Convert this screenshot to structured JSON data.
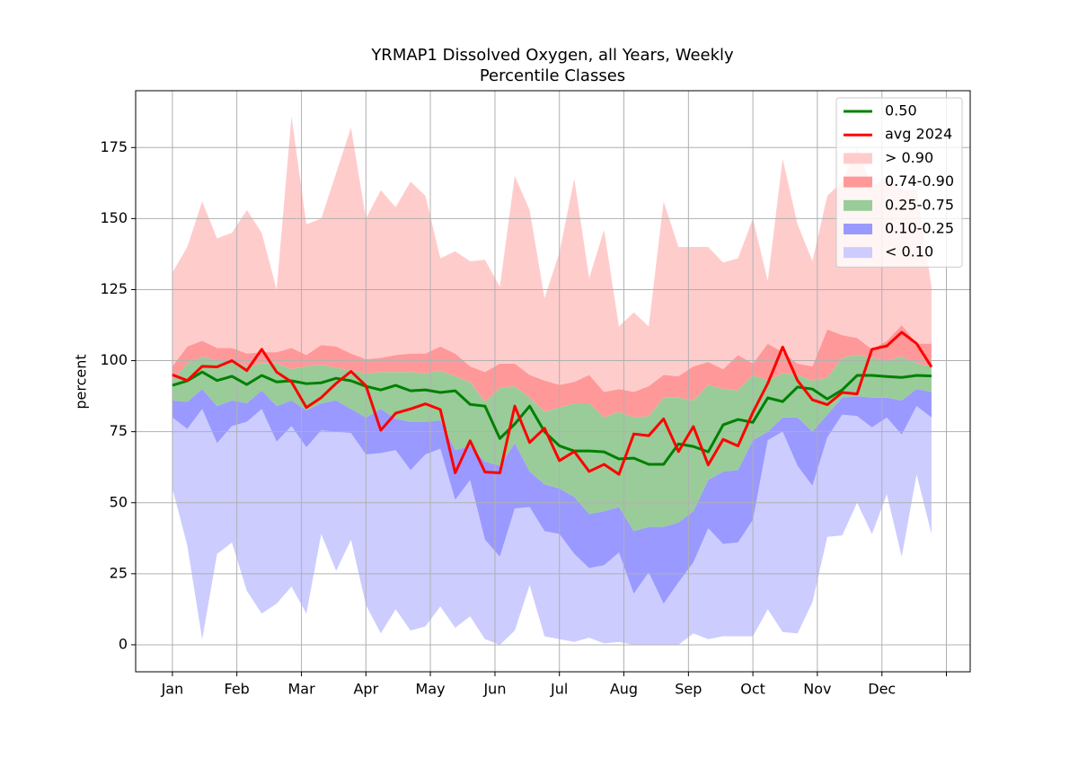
{
  "chart_data": {
    "type": "band",
    "title": "YRMAP1 Dissolved Oxygen, all Years, Weekly",
    "subtitle": "Percentile Classes",
    "y_label": "percent",
    "x": [
      0,
      1,
      2,
      3,
      4,
      5,
      6,
      7,
      8,
      9,
      10,
      11,
      12,
      13,
      14,
      15,
      16,
      17,
      18,
      19,
      20,
      21,
      22,
      23,
      24,
      25,
      26,
      27,
      28,
      29,
      30,
      31,
      32,
      33,
      34,
      35,
      36,
      37,
      38,
      39,
      40,
      41,
      42,
      43,
      44,
      45,
      46,
      47,
      48,
      49,
      50,
      51
    ],
    "xlim": [
      -2.47,
      53.6
    ],
    "xticks": [
      {
        "value": 0,
        "label": "Jan"
      },
      {
        "value": 4.33,
        "label": "Feb"
      },
      {
        "value": 8.67,
        "label": "Mar"
      },
      {
        "value": 13,
        "label": "Apr"
      },
      {
        "value": 17.33,
        "label": "May"
      },
      {
        "value": 21.67,
        "label": "Jun"
      },
      {
        "value": 26,
        "label": "Jul"
      },
      {
        "value": 30.33,
        "label": "Aug"
      },
      {
        "value": 34.67,
        "label": "Sep"
      },
      {
        "value": 39,
        "label": "Oct"
      },
      {
        "value": 43.33,
        "label": "Nov"
      },
      {
        "value": 47.67,
        "label": "Dec"
      },
      {
        "value": 52,
        "label": null
      }
    ],
    "ylim": [
      -9.5,
      195
    ],
    "yticks": [
      0,
      25,
      50,
      75,
      100,
      125,
      150,
      175
    ],
    "grid": true,
    "legend": "upper right",
    "series": [
      {
        "name": "0.50",
        "color": "#008000",
        "values": [
          91.3,
          92.9,
          96,
          93,
          94.5,
          91.6,
          94.8,
          92.5,
          92.9,
          91.9,
          92.2,
          93.8,
          92.9,
          91,
          89.7,
          91.3,
          89.4,
          89.7,
          88.8,
          89.4,
          84.6,
          84,
          72.6,
          77.7,
          84,
          75,
          70,
          68.2,
          68.2,
          67.9,
          65.4,
          65.7,
          63.5,
          63.5,
          70.7,
          69.8,
          67.9,
          77.4,
          79.3,
          78.3,
          86.9,
          85.6,
          90.7,
          90,
          86.5,
          89.7,
          94.8,
          94.8,
          94.4,
          94.1,
          94.8,
          94.6
        ]
      },
      {
        "name": "avg 2024",
        "color": "#ff0000",
        "values": [
          95,
          93,
          98,
          97.8,
          100,
          96.5,
          104,
          96,
          92.5,
          83.5,
          87,
          92,
          96.2,
          91.2,
          75.5,
          81.5,
          83,
          84.8,
          82.8,
          60.5,
          71.8,
          60.8,
          60.5,
          84,
          71.2,
          76.2,
          64.8,
          68,
          61,
          63.5,
          60,
          74.2,
          73.6,
          79.5,
          68,
          76.8,
          63.3,
          72.3,
          70,
          81.8,
          92,
          104.8,
          93,
          86.2,
          84.5,
          88.8,
          88.3,
          104,
          105.2,
          110,
          106,
          97.8
        ]
      }
    ],
    "bands": [
      {
        "name": "> 0.90",
        "color": "#ffcccc",
        "lower": [
          98,
          105,
          107,
          104.5,
          104.5,
          102.5,
          103,
          103,
          104.5,
          102,
          105.5,
          105,
          102.5,
          100.5,
          101,
          102,
          102.5,
          102.5,
          105,
          102.5,
          98,
          96,
          99,
          99,
          95,
          93,
          91.5,
          92.5,
          95,
          89,
          90,
          89,
          91,
          95,
          94.5,
          98,
          99.5,
          97,
          102,
          99,
          106,
          103,
          99,
          98,
          111,
          109,
          108,
          104,
          107,
          112.5,
          106,
          106
        ],
        "upper": [
          131,
          140,
          156,
          143,
          145,
          153,
          145,
          125,
          186,
          148,
          150,
          166,
          182,
          150,
          160,
          154,
          163,
          158,
          136,
          138.5,
          135,
          135.5,
          126,
          165,
          153,
          122,
          138,
          164,
          129,
          146,
          112,
          117,
          112,
          156,
          140,
          140,
          140,
          134.5,
          136,
          150,
          128,
          171,
          148,
          135,
          158,
          163,
          175,
          161,
          165,
          160,
          160,
          126
        ]
      },
      {
        "name": "0.74-0.90",
        "color": "#ff9999",
        "lower": [
          93,
          99,
          101.5,
          100,
          100,
          98,
          99,
          99,
          97,
          98,
          98.5,
          97.5,
          96.5,
          95.5,
          96,
          96,
          96,
          95.5,
          96.5,
          94.5,
          92.5,
          85.5,
          90.5,
          91,
          87,
          82,
          83.5,
          85,
          85,
          80,
          82,
          80,
          80.5,
          87,
          87,
          86,
          91.5,
          90,
          89.5,
          95,
          93,
          95.5,
          95,
          93,
          94,
          101,
          102,
          101,
          100,
          101.5,
          99,
          98
        ],
        "upper": [
          98,
          105,
          107,
          104.5,
          104.5,
          102.5,
          103,
          103,
          104.5,
          102,
          105.5,
          105,
          102.5,
          100.5,
          101,
          102,
          102.5,
          102.5,
          105,
          102.5,
          98,
          96,
          99,
          99,
          95,
          93,
          91.5,
          92.5,
          95,
          89,
          90,
          89,
          91,
          95,
          94.5,
          98,
          99.5,
          97,
          102,
          99,
          106,
          103,
          99,
          98,
          111,
          109,
          108,
          104,
          107,
          112.5,
          106,
          106
        ]
      },
      {
        "name": "0.25-0.75",
        "color": "#99cc99",
        "lower": [
          86,
          85.5,
          90,
          84,
          86,
          85,
          89.5,
          84,
          86,
          82.5,
          85,
          86,
          83,
          80,
          83,
          79.5,
          78.5,
          78.5,
          79,
          68.5,
          70,
          64.5,
          63,
          71,
          61,
          56.5,
          55,
          52,
          46,
          47,
          48.5,
          40,
          41.5,
          41.5,
          43,
          47,
          58,
          61,
          61.5,
          72,
          75,
          80,
          80,
          75,
          81,
          87,
          87.5,
          87,
          87,
          86,
          90,
          89
        ],
        "upper": [
          93,
          99,
          101.5,
          100,
          100,
          98,
          99,
          99,
          97,
          98,
          98.5,
          97.5,
          96.5,
          95.5,
          96,
          96,
          96,
          95.5,
          96.5,
          94.5,
          92.5,
          85.5,
          90.5,
          91,
          87,
          82,
          83.5,
          85,
          85,
          80,
          82,
          80,
          80.5,
          87,
          87,
          86,
          91.5,
          90,
          89.5,
          95,
          93,
          95.5,
          95,
          93,
          94,
          101,
          102,
          101,
          100,
          101.5,
          99,
          98
        ]
      },
      {
        "name": "0.10-0.25",
        "color": "#9999ff",
        "lower": [
          80,
          76,
          83,
          71,
          77,
          78.5,
          83,
          71.5,
          77,
          69.5,
          75.5,
          75,
          74.5,
          67,
          67.5,
          68.5,
          61.5,
          67,
          69,
          51,
          58,
          37,
          31,
          48,
          48.5,
          40,
          39,
          32,
          27,
          28,
          32.5,
          18,
          25.5,
          14.5,
          22,
          29,
          41,
          35.5,
          36,
          44,
          72,
          75,
          63,
          56,
          73,
          81,
          80.5,
          76.5,
          80,
          74,
          84,
          80
        ],
        "upper": [
          86,
          85.5,
          90,
          84,
          86,
          85,
          89.5,
          84,
          86,
          82.5,
          85,
          86,
          83,
          80,
          83,
          79.5,
          78.5,
          78.5,
          79,
          68.5,
          70,
          64.5,
          63,
          71,
          61,
          56.5,
          55,
          52,
          46,
          47,
          48.5,
          40,
          41.5,
          41.5,
          43,
          47,
          58,
          61,
          61.5,
          72,
          75,
          80,
          80,
          75,
          81,
          87,
          87.5,
          87,
          87,
          86,
          90,
          89
        ]
      },
      {
        "name": "< 0.10",
        "color": "#ccccff",
        "lower": [
          55,
          35,
          2,
          32,
          36,
          19,
          11,
          14.5,
          20.5,
          11,
          39,
          26,
          37,
          14,
          4,
          12.5,
          5,
          6.5,
          13.5,
          6,
          10,
          2,
          0,
          5,
          21,
          3,
          2,
          1,
          2.5,
          0.5,
          1,
          0,
          0,
          0,
          0,
          4,
          2,
          3,
          3,
          3,
          12.5,
          4.5,
          4,
          15,
          38,
          38.5,
          50,
          39,
          53,
          31,
          60,
          39
        ],
        "upper": [
          80,
          76,
          83,
          71,
          77,
          78.5,
          83,
          71.5,
          77,
          69.5,
          75.5,
          75,
          74.5,
          67,
          67.5,
          68.5,
          61.5,
          67,
          69,
          51,
          58,
          37,
          31,
          48,
          48.5,
          40,
          39,
          32,
          27,
          28,
          32.5,
          18,
          25.5,
          14.5,
          22,
          29,
          41,
          35.5,
          36,
          44,
          72,
          75,
          63,
          56,
          73,
          81,
          80.5,
          76.5,
          80,
          74,
          84,
          80
        ]
      }
    ]
  }
}
